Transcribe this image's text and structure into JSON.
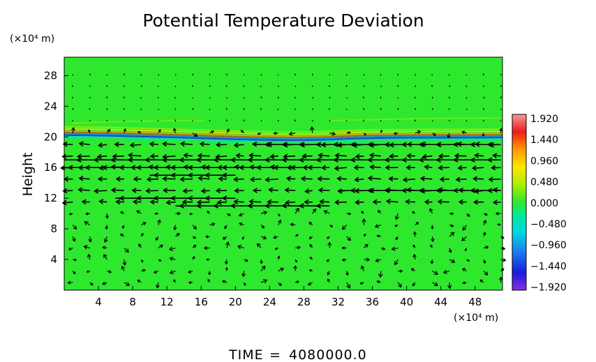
{
  "chart_data": {
    "type": "heatmap",
    "title": "Potential Temperature Deviation",
    "ylabel": "Height",
    "y_unit_label": "(×10⁴ m)",
    "x_unit_label": "(×10⁴ m)",
    "x_range": [
      0,
      51.2
    ],
    "y_range": [
      0,
      30.4
    ],
    "x_ticks": [
      "4",
      "8",
      "12",
      "16",
      "20",
      "24",
      "28",
      "32",
      "36",
      "40",
      "44",
      "48"
    ],
    "x_tick_values": [
      4,
      8,
      12,
      16,
      20,
      24,
      28,
      32,
      36,
      40,
      44,
      48
    ],
    "y_ticks": [
      "4",
      "8",
      "12",
      "16",
      "20",
      "24",
      "28"
    ],
    "y_tick_values": [
      4,
      8,
      12,
      16,
      20,
      24,
      28
    ],
    "background_value": 0.0,
    "anomaly_band": {
      "description": "thin tilted layer of strong deviation near the tropopause",
      "y_left": 20.5,
      "y_right": 20.1,
      "min": -1.44,
      "max": 1.92
    },
    "colorbar": {
      "labels": [
        "1.920",
        "1.440",
        "0.960",
        "0.480",
        "0.000",
        "−0.480",
        "−0.960",
        "−1.440",
        "−1.920"
      ],
      "values": [
        1.92,
        1.44,
        0.96,
        0.48,
        0.0,
        -0.48,
        -0.96,
        -1.44,
        -1.92
      ]
    },
    "vector_field": {
      "description": "wind vectors, predominantly leftward (westward) jets between heights 11 and 20",
      "strong_jets": [
        {
          "y": 19.0,
          "x_from": 51,
          "x_to": 22
        },
        {
          "y": 17.0,
          "x_from": 51,
          "x_to": 0
        },
        {
          "y": 16.0,
          "x_from": 30,
          "x_to": 0
        },
        {
          "y": 15.0,
          "x_from": 20,
          "x_to": 10
        },
        {
          "y": 13.0,
          "x_from": 51,
          "x_to": 32
        },
        {
          "y": 12.0,
          "x_from": 20,
          "x_to": 6
        },
        {
          "y": 11.0,
          "x_from": 31,
          "x_to": 13
        }
      ]
    },
    "colors": {
      "background_field": "#2ee82e",
      "arrow": "#000000",
      "frame": "#000000"
    }
  },
  "footer": {
    "time_label": "TIME",
    "equals": "=",
    "time_value": "4080000.0"
  }
}
